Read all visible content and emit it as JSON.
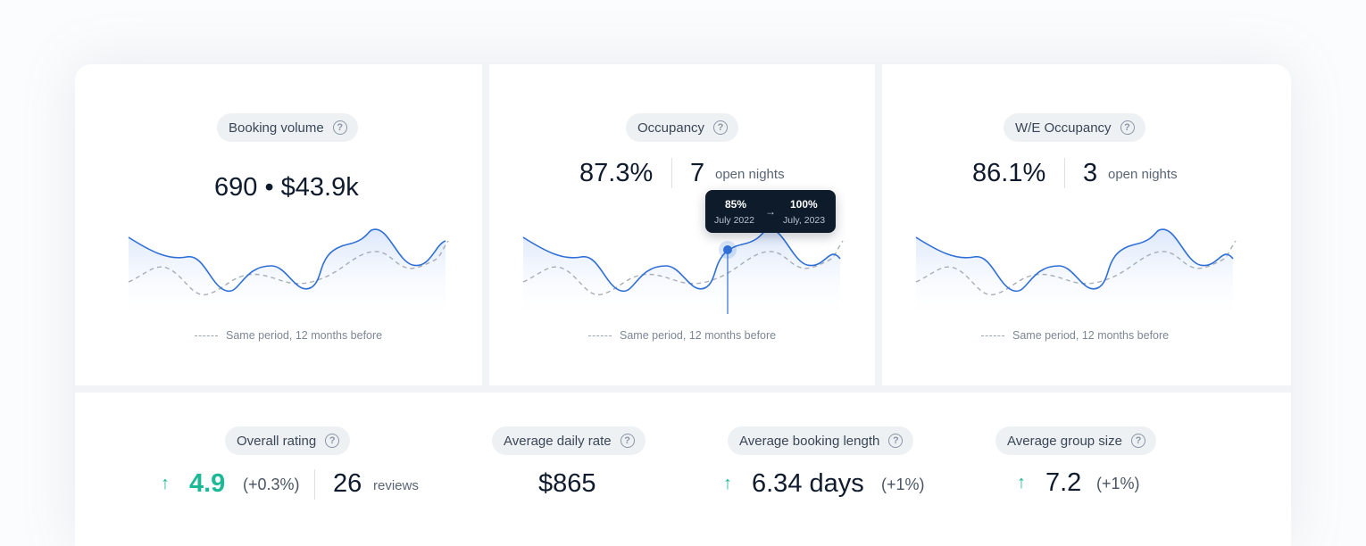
{
  "top_cards": [
    {
      "label": "Booking volume",
      "value": "690 • $43.9k",
      "legend": "Same period, 12 months before"
    },
    {
      "label": "Occupancy",
      "value": "87.3%",
      "secondary_value": "7",
      "secondary_label": "open nights",
      "legend": "Same period, 12 months before",
      "tooltip": {
        "from_value": "85%",
        "from_date": "July 2022",
        "to_value": "100%",
        "to_date": "July, 2023"
      }
    },
    {
      "label": "W/E Occupancy",
      "value": "86.1%",
      "secondary_value": "3",
      "secondary_label": "open nights",
      "legend": "Same period, 12 months before"
    }
  ],
  "bottom_metrics": [
    {
      "label": "Overall rating",
      "value": "4.9",
      "delta": "(+0.3%)",
      "secondary_value": "26",
      "secondary_label": "reviews",
      "trend": "up"
    },
    {
      "label": "Average daily rate",
      "value": "$865"
    },
    {
      "label": "Average booking length",
      "value": "6.34 days",
      "delta": "(+1%)",
      "trend": "up"
    },
    {
      "label": "Average group size",
      "value": "7.2",
      "delta": "(+1%)",
      "trend": "up"
    }
  ],
  "icons": {
    "help": "question-circle-icon",
    "trend_up": "arrow-up-icon",
    "tooltip_arrow": "arrow-right-icon"
  },
  "colors": {
    "accent": "#2f6fd6",
    "positive": "#1db895",
    "comparison_line": "#9aa3ae"
  },
  "help_glyph": "?",
  "up_glyph": "↑",
  "arrow_glyph": "→"
}
